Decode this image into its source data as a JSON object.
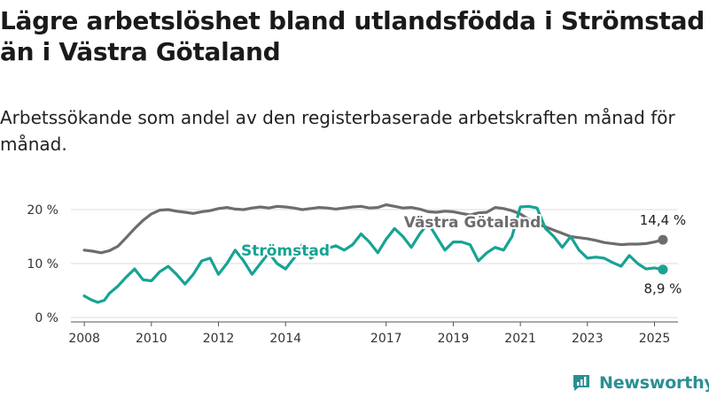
{
  "title": "Lägre arbetslöshet bland utlandsfödda i Strömstad än i Västra Götaland",
  "subtitle": "Arbetssökande som andel av den registerbaserade arbetskraften månad för månad.",
  "brand": {
    "name": "Newsworthy"
  },
  "chart_data": {
    "type": "line",
    "title": "Lägre arbetslöshet bland utlandsfödda i Strömstad än i Västra Götaland",
    "subtitle": "Arbetssökande som andel av den registerbaserade arbetskraften månad för månad.",
    "xlabel": "",
    "ylabel": "",
    "ylim": [
      0,
      20
    ],
    "xlim": [
      2007.6,
      2025.7
    ],
    "x_ticks": [
      2008,
      2010,
      2012,
      2014,
      2017,
      2019,
      2021,
      2023,
      2025
    ],
    "x_tick_labels": [
      "2008",
      "2010",
      "2012",
      "2014",
      "2017",
      "2019",
      "2021",
      "2023",
      "2025"
    ],
    "y_ticks": [
      0,
      10,
      20
    ],
    "y_tick_labels": [
      "0 %",
      "10 %",
      "20 %"
    ],
    "grid": true,
    "legend": "direct labels",
    "series": [
      {
        "name": "Västra Götaland",
        "color": "#6d6d6d",
        "end_label": "14,4 %",
        "points": [
          [
            2008.0,
            12.5
          ],
          [
            2008.25,
            12.3
          ],
          [
            2008.5,
            12.0
          ],
          [
            2008.75,
            12.4
          ],
          [
            2009.0,
            13.2
          ],
          [
            2009.25,
            14.8
          ],
          [
            2009.5,
            16.5
          ],
          [
            2009.75,
            18.0
          ],
          [
            2010.0,
            19.2
          ],
          [
            2010.25,
            19.9
          ],
          [
            2010.5,
            20.0
          ],
          [
            2010.75,
            19.7
          ],
          [
            2011.0,
            19.5
          ],
          [
            2011.25,
            19.3
          ],
          [
            2011.5,
            19.6
          ],
          [
            2011.75,
            19.8
          ],
          [
            2012.0,
            20.2
          ],
          [
            2012.25,
            20.4
          ],
          [
            2012.5,
            20.1
          ],
          [
            2012.75,
            20.0
          ],
          [
            2013.0,
            20.3
          ],
          [
            2013.25,
            20.5
          ],
          [
            2013.5,
            20.3
          ],
          [
            2013.75,
            20.6
          ],
          [
            2014.0,
            20.5
          ],
          [
            2014.25,
            20.3
          ],
          [
            2014.5,
            20.0
          ],
          [
            2014.75,
            20.2
          ],
          [
            2015.0,
            20.4
          ],
          [
            2015.25,
            20.3
          ],
          [
            2015.5,
            20.1
          ],
          [
            2015.75,
            20.3
          ],
          [
            2016.0,
            20.5
          ],
          [
            2016.25,
            20.6
          ],
          [
            2016.5,
            20.3
          ],
          [
            2016.75,
            20.4
          ],
          [
            2017.0,
            20.9
          ],
          [
            2017.25,
            20.6
          ],
          [
            2017.5,
            20.3
          ],
          [
            2017.75,
            20.4
          ],
          [
            2018.0,
            20.1
          ],
          [
            2018.25,
            19.6
          ],
          [
            2018.5,
            19.5
          ],
          [
            2018.75,
            19.7
          ],
          [
            2019.0,
            19.6
          ],
          [
            2019.25,
            19.3
          ],
          [
            2019.5,
            19.0
          ],
          [
            2019.75,
            19.4
          ],
          [
            2020.0,
            19.5
          ],
          [
            2020.25,
            20.4
          ],
          [
            2020.5,
            20.2
          ],
          [
            2020.75,
            19.8
          ],
          [
            2021.0,
            19.2
          ],
          [
            2021.25,
            18.2
          ],
          [
            2021.5,
            17.3
          ],
          [
            2021.75,
            16.8
          ],
          [
            2022.0,
            16.2
          ],
          [
            2022.25,
            15.6
          ],
          [
            2022.5,
            15.0
          ],
          [
            2022.75,
            14.8
          ],
          [
            2023.0,
            14.6
          ],
          [
            2023.25,
            14.3
          ],
          [
            2023.5,
            13.9
          ],
          [
            2023.75,
            13.7
          ],
          [
            2024.0,
            13.5
          ],
          [
            2024.25,
            13.6
          ],
          [
            2024.5,
            13.6
          ],
          [
            2024.75,
            13.7
          ],
          [
            2025.0,
            14.0
          ],
          [
            2025.25,
            14.4
          ]
        ]
      },
      {
        "name": "Strömstad",
        "color": "#17a394",
        "end_label": "8,9 %",
        "points": [
          [
            2008.0,
            4.0
          ],
          [
            2008.2,
            3.3
          ],
          [
            2008.4,
            2.8
          ],
          [
            2008.6,
            3.2
          ],
          [
            2008.75,
            4.5
          ],
          [
            2009.0,
            5.8
          ],
          [
            2009.25,
            7.5
          ],
          [
            2009.5,
            9.0
          ],
          [
            2009.75,
            7.0
          ],
          [
            2010.0,
            6.8
          ],
          [
            2010.25,
            8.5
          ],
          [
            2010.5,
            9.5
          ],
          [
            2010.75,
            8.0
          ],
          [
            2011.0,
            6.2
          ],
          [
            2011.25,
            8.0
          ],
          [
            2011.5,
            10.5
          ],
          [
            2011.75,
            11.0
          ],
          [
            2012.0,
            8.0
          ],
          [
            2012.25,
            10.0
          ],
          [
            2012.5,
            12.5
          ],
          [
            2012.75,
            10.5
          ],
          [
            2013.0,
            8.0
          ],
          [
            2013.25,
            10.0
          ],
          [
            2013.5,
            12.0
          ],
          [
            2013.75,
            10.0
          ],
          [
            2014.0,
            9.0
          ],
          [
            2014.25,
            11.0
          ],
          [
            2014.5,
            13.5
          ],
          [
            2014.75,
            11.0
          ],
          [
            2015.0,
            12.0
          ],
          [
            2015.25,
            12.8
          ],
          [
            2015.5,
            13.3
          ],
          [
            2015.75,
            12.5
          ],
          [
            2016.0,
            13.5
          ],
          [
            2016.25,
            15.5
          ],
          [
            2016.5,
            14.0
          ],
          [
            2016.75,
            12.0
          ],
          [
            2017.0,
            14.5
          ],
          [
            2017.25,
            16.5
          ],
          [
            2017.5,
            15.0
          ],
          [
            2017.75,
            13.0
          ],
          [
            2018.0,
            15.5
          ],
          [
            2018.25,
            17.5
          ],
          [
            2018.5,
            15.0
          ],
          [
            2018.75,
            12.5
          ],
          [
            2019.0,
            14.0
          ],
          [
            2019.25,
            14.0
          ],
          [
            2019.5,
            13.5
          ],
          [
            2019.75,
            10.5
          ],
          [
            2020.0,
            12.0
          ],
          [
            2020.25,
            13.0
          ],
          [
            2020.5,
            12.5
          ],
          [
            2020.75,
            15.0
          ],
          [
            2021.0,
            20.5
          ],
          [
            2021.25,
            20.6
          ],
          [
            2021.5,
            20.3
          ],
          [
            2021.75,
            16.5
          ],
          [
            2022.0,
            15.0
          ],
          [
            2022.25,
            13.0
          ],
          [
            2022.5,
            15.0
          ],
          [
            2022.75,
            12.5
          ],
          [
            2023.0,
            11.0
          ],
          [
            2023.25,
            11.2
          ],
          [
            2023.5,
            11.0
          ],
          [
            2023.75,
            10.2
          ],
          [
            2024.0,
            9.5
          ],
          [
            2024.25,
            11.5
          ],
          [
            2024.5,
            10.0
          ],
          [
            2024.75,
            9.0
          ],
          [
            2025.0,
            9.2
          ],
          [
            2025.25,
            8.9
          ]
        ]
      }
    ]
  }
}
